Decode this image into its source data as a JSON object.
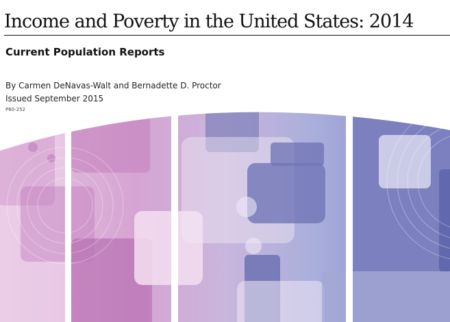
{
  "cover": {
    "title": "Income and Poverty in the United States: 2014",
    "subtitle": "Current Population Reports",
    "authors": "By Carmen DeNavas-Walt and Bernadette D. Proctor",
    "issued": "Issued September 2015",
    "report_number": "P60-252"
  },
  "colors": {
    "text": "#111111",
    "pink": "#c98fc4",
    "lavender": "#a8a8d6",
    "blue": "#6f74b8"
  }
}
